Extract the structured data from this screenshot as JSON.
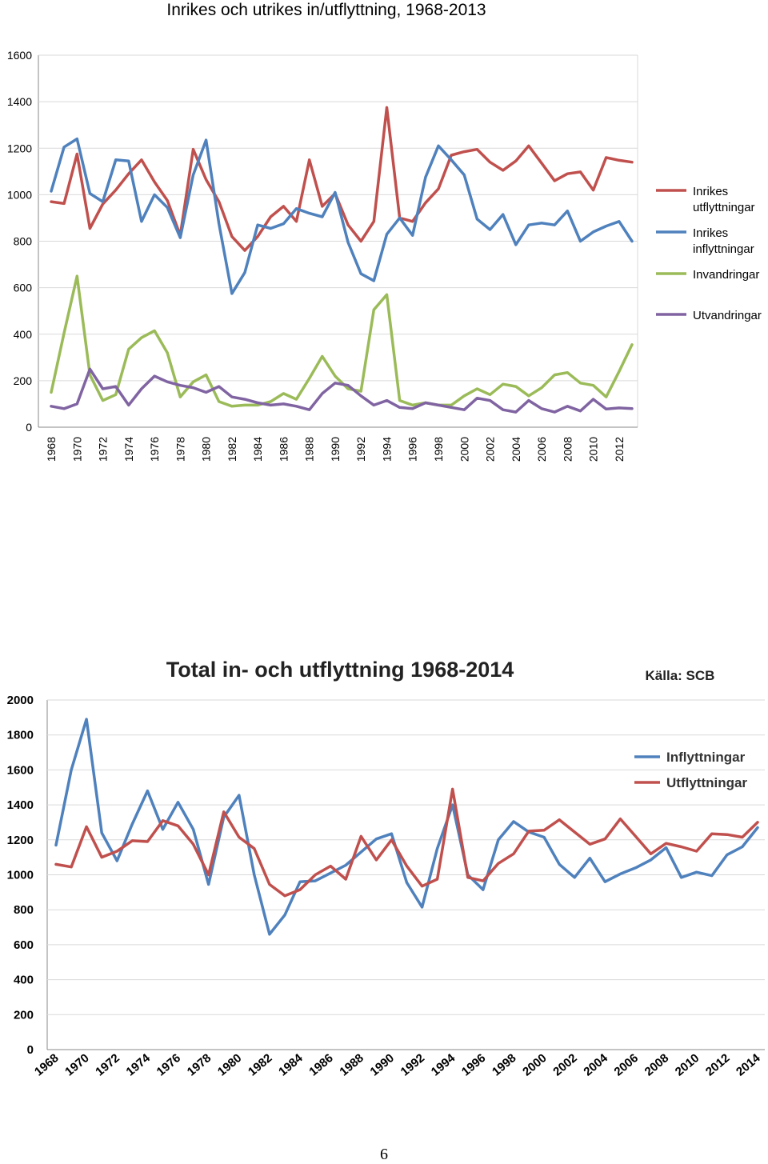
{
  "page_number": "6",
  "chart_data": [
    {
      "type": "line",
      "title": "Inrikes och utrikes in/utflyttning, 1968-2013",
      "ylim": [
        0,
        1600
      ],
      "yticks": [
        0,
        200,
        400,
        600,
        800,
        1000,
        1200,
        1400,
        1600
      ],
      "xtick_labels": [
        "1968",
        "1970",
        "1972",
        "1974",
        "1976",
        "1978",
        "1980",
        "1982",
        "1984",
        "1986",
        "1988",
        "1990",
        "1992",
        "1994",
        "1996",
        "1998",
        "2000",
        "2002",
        "2004",
        "2006",
        "2008",
        "2010",
        "2012"
      ],
      "grid": true,
      "legend_position": "right",
      "x": [
        1968,
        1969,
        1970,
        1971,
        1972,
        1973,
        1974,
        1975,
        1976,
        1977,
        1978,
        1979,
        1980,
        1981,
        1982,
        1983,
        1984,
        1985,
        1986,
        1987,
        1988,
        1989,
        1990,
        1991,
        1992,
        1993,
        1994,
        1995,
        1996,
        1997,
        1998,
        1999,
        2000,
        2001,
        2002,
        2003,
        2004,
        2005,
        2006,
        2007,
        2008,
        2009,
        2010,
        2011,
        2012,
        2013
      ],
      "series": [
        {
          "name": "Inrikes utflyttningar",
          "color": "#c0504d",
          "values": [
            970,
            962,
            1175,
            855,
            960,
            1020,
            1090,
            1150,
            1055,
            975,
            825,
            1195,
            1065,
            970,
            820,
            760,
            820,
            905,
            950,
            885,
            1150,
            950,
            1005,
            870,
            800,
            885,
            1375,
            900,
            885,
            965,
            1025,
            1170,
            1185,
            1195,
            1140,
            1105,
            1145,
            1210,
            1135,
            1060,
            1090,
            1098,
            1020,
            1160,
            1148,
            1140
          ]
        },
        {
          "name": "Inrikes inflyttningar",
          "color": "#4f81bd",
          "values": [
            1015,
            1205,
            1240,
            1005,
            970,
            1150,
            1145,
            885,
            1000,
            945,
            815,
            1085,
            1235,
            875,
            575,
            665,
            870,
            855,
            875,
            940,
            920,
            905,
            1010,
            795,
            660,
            630,
            830,
            900,
            825,
            1075,
            1210,
            1150,
            1085,
            895,
            850,
            915,
            785,
            870,
            878,
            870,
            930,
            800,
            840,
            865,
            885,
            800
          ]
        },
        {
          "name": "Invandringar",
          "color": "#9bbb59",
          "values": [
            150,
            405,
            650,
            225,
            115,
            140,
            335,
            385,
            415,
            320,
            130,
            195,
            225,
            110,
            90,
            95,
            95,
            110,
            145,
            120,
            210,
            305,
            220,
            165,
            155,
            505,
            570,
            115,
            95,
            105,
            95,
            95,
            135,
            165,
            140,
            185,
            175,
            135,
            170,
            225,
            235,
            190,
            180,
            130,
            240,
            355
          ]
        },
        {
          "name": "Utvandringar",
          "color": "#8064a2",
          "values": [
            90,
            80,
            100,
            250,
            165,
            175,
            95,
            165,
            220,
            195,
            180,
            170,
            150,
            175,
            130,
            120,
            105,
            95,
            100,
            90,
            75,
            145,
            190,
            180,
            135,
            95,
            115,
            85,
            80,
            105,
            95,
            85,
            75,
            125,
            115,
            75,
            65,
            115,
            80,
            65,
            90,
            70,
            120,
            78,
            83,
            80
          ]
        }
      ]
    },
    {
      "type": "line",
      "title": "Total in- och utflyttning 1968-2014",
      "subtitle": "Källa: SCB",
      "ylim": [
        0,
        2000
      ],
      "yticks": [
        0,
        200,
        400,
        600,
        800,
        1000,
        1200,
        1400,
        1600,
        1800,
        2000
      ],
      "xtick_labels": [
        "1968",
        "1970",
        "1972",
        "1974",
        "1976",
        "1978",
        "1980",
        "1982",
        "1984",
        "1986",
        "1988",
        "1990",
        "1992",
        "1994",
        "1996",
        "1998",
        "2000",
        "2002",
        "2004",
        "2006",
        "2008",
        "2010",
        "2012",
        "2014"
      ],
      "grid": true,
      "legend_position": "right",
      "x": [
        1968,
        1969,
        1970,
        1971,
        1972,
        1973,
        1974,
        1975,
        1976,
        1977,
        1978,
        1979,
        1980,
        1981,
        1982,
        1983,
        1984,
        1985,
        1986,
        1987,
        1988,
        1989,
        1990,
        1991,
        1992,
        1993,
        1994,
        1995,
        1996,
        1997,
        1998,
        1999,
        2000,
        2001,
        2002,
        2003,
        2004,
        2005,
        2006,
        2007,
        2008,
        2009,
        2010,
        2011,
        2012,
        2013,
        2014
      ],
      "series": [
        {
          "name": "Inflyttningar",
          "color": "#4f81bd",
          "values": [
            1170,
            1600,
            1890,
            1240,
            1080,
            1290,
            1480,
            1260,
            1415,
            1260,
            945,
            1330,
            1455,
            1000,
            660,
            770,
            960,
            965,
            1010,
            1055,
            1130,
            1205,
            1235,
            955,
            815,
            1150,
            1400,
            1000,
            915,
            1200,
            1305,
            1245,
            1215,
            1060,
            985,
            1095,
            960,
            1005,
            1040,
            1085,
            1155,
            985,
            1015,
            995,
            1115,
            1160,
            1270
          ]
        },
        {
          "name": "Utflyttningar",
          "color": "#c0504d",
          "values": [
            1060,
            1045,
            1275,
            1100,
            1135,
            1195,
            1190,
            1310,
            1280,
            1175,
            1000,
            1360,
            1215,
            1150,
            945,
            880,
            915,
            1000,
            1050,
            975,
            1220,
            1085,
            1200,
            1050,
            935,
            975,
            1490,
            985,
            965,
            1065,
            1120,
            1250,
            1255,
            1315,
            1245,
            1175,
            1205,
            1320,
            1220,
            1120,
            1180,
            1160,
            1135,
            1235,
            1230,
            1215,
            1300
          ]
        }
      ]
    }
  ]
}
